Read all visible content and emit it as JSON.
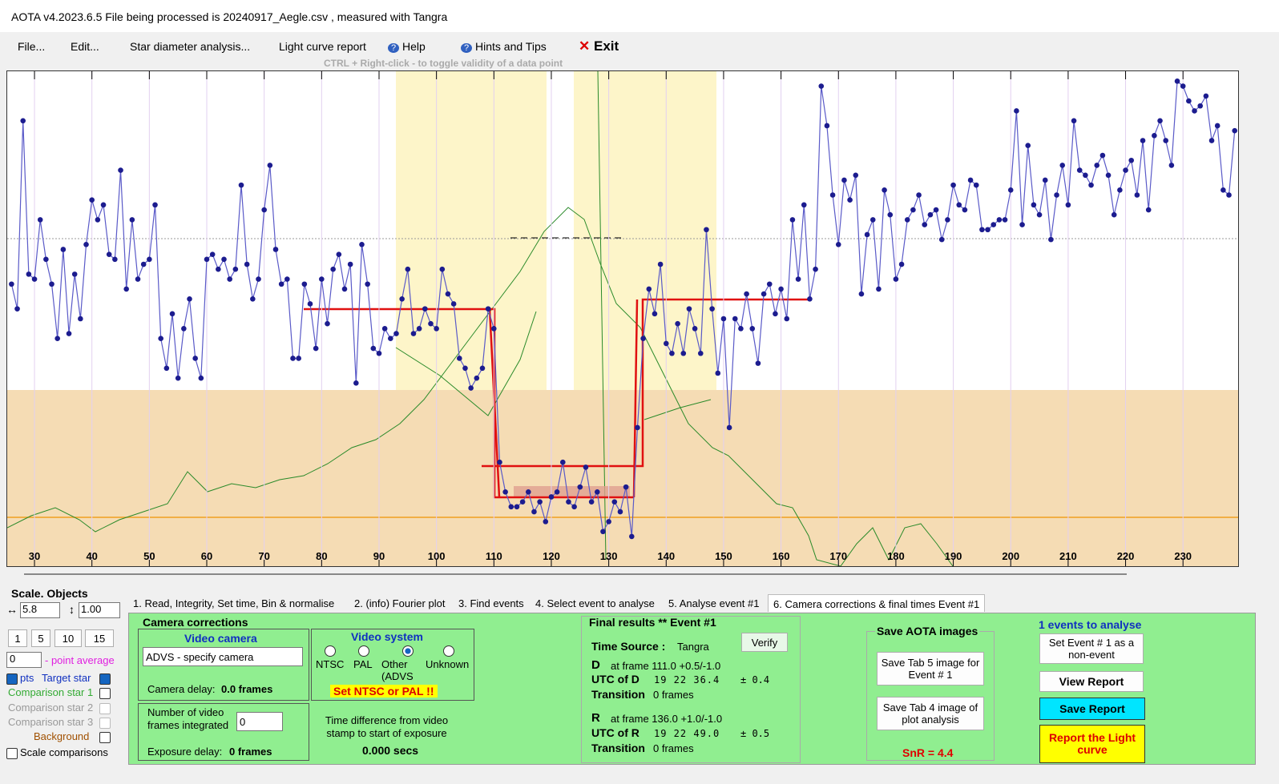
{
  "window": {
    "title": "AOTA v4.2023.6.5    File being processed is  20240917_Aegle.csv ,  measured with Tangra"
  },
  "menu": [
    "File...",
    "Edit...",
    "Star diameter analysis...",
    "Light curve report",
    "Help",
    "Hints and Tips",
    "Exit"
  ],
  "hint": "CTRL + Right-click   -   to toggle validity of a data point",
  "chart_data": {
    "type": "line",
    "x": [
      26,
      27,
      28,
      29,
      30,
      31,
      32,
      33,
      34,
      35,
      36,
      37,
      38,
      39,
      40,
      41,
      42,
      43,
      44,
      45,
      46,
      47,
      48,
      49,
      50,
      51,
      52,
      53,
      54,
      55,
      56,
      57,
      58,
      59,
      60,
      61,
      62,
      63,
      64,
      65,
      66,
      67,
      68,
      69,
      70,
      71,
      72,
      73,
      74,
      75,
      76,
      77,
      78,
      79,
      80,
      81,
      82,
      83,
      84,
      85,
      86,
      87,
      88,
      89,
      90,
      91,
      92,
      93,
      94,
      95,
      96,
      97,
      98,
      99,
      100,
      101,
      102,
      103,
      104,
      105,
      106,
      107,
      108,
      109,
      110,
      111,
      112,
      113,
      114,
      115,
      116,
      117,
      118,
      119,
      120,
      121,
      122,
      123,
      124,
      125,
      126,
      127,
      128,
      129,
      130,
      131,
      132,
      133,
      134,
      135,
      136,
      137,
      138,
      139,
      140,
      141,
      142,
      143,
      144,
      145,
      146,
      147,
      148,
      149,
      150,
      151,
      152,
      153,
      154,
      155,
      156,
      157,
      158,
      159,
      160,
      161,
      162,
      163,
      164,
      165,
      166,
      167,
      168,
      169,
      170,
      171,
      172,
      173,
      174,
      175,
      176,
      177,
      178,
      179,
      180,
      181,
      182,
      183,
      184,
      185,
      186,
      187,
      188,
      189,
      190,
      191,
      192,
      193,
      194,
      195,
      196,
      197,
      198,
      199,
      200,
      201,
      202,
      203,
      204,
      205,
      206,
      207,
      208,
      209,
      210,
      211,
      212,
      213,
      214,
      215,
      216,
      217,
      218,
      219,
      220,
      221,
      222,
      223,
      224,
      225,
      226,
      227,
      228,
      229,
      230,
      231,
      232,
      233,
      234,
      235,
      236,
      237,
      238,
      239
    ],
    "series": [
      {
        "name": "Target star",
        "color": "#1c1c8f",
        "values": [
          57,
          52,
          90,
          59,
          58,
          70,
          62,
          57,
          46,
          64,
          47,
          59,
          50,
          65,
          74,
          70,
          73,
          63,
          62,
          80,
          56,
          70,
          58,
          61,
          62,
          73,
          46,
          40,
          51,
          38,
          48,
          54,
          42,
          38,
          62,
          63,
          60,
          62,
          58,
          60,
          77,
          61,
          54,
          58,
          72,
          81,
          64,
          57,
          58,
          42,
          42,
          57,
          53,
          44,
          58,
          49,
          60,
          63,
          56,
          61,
          37,
          65,
          57,
          44,
          43,
          48,
          46,
          47,
          54,
          60,
          47,
          48,
          52,
          49,
          48,
          60,
          55,
          53,
          42,
          40,
          36,
          38,
          40,
          52,
          48,
          21,
          15,
          12,
          12,
          13,
          15,
          11,
          13,
          9,
          14,
          15,
          21,
          13,
          12,
          16,
          20,
          13,
          15,
          7,
          9,
          13,
          11,
          16,
          6,
          28,
          46,
          56,
          51,
          61,
          45,
          43,
          49,
          43,
          52,
          48,
          43,
          68,
          52,
          39,
          50,
          28,
          50,
          48,
          55,
          48,
          41,
          55,
          57,
          51,
          56,
          50,
          70,
          58,
          73,
          54,
          60,
          97,
          89,
          75,
          65,
          78,
          74,
          79,
          55,
          67,
          70,
          56,
          76,
          71,
          58,
          61,
          70,
          72,
          75,
          69,
          71,
          72,
          66,
          70,
          77,
          73,
          72,
          78,
          77,
          68,
          68,
          69,
          70,
          70,
          76,
          92,
          69,
          85,
          73,
          71,
          78,
          66,
          75,
          81,
          73,
          90,
          80,
          79,
          77,
          81,
          83,
          79,
          71,
          76,
          80,
          82,
          75,
          86,
          72,
          87,
          90,
          86,
          81,
          98,
          97,
          94,
          92,
          93,
          95,
          86,
          89,
          76,
          75,
          88
        ]
      }
    ],
    "xlim": [
      25.25,
      239.6
    ],
    "ylim": [
      0,
      100
    ],
    "xticks": [
      30,
      40,
      50,
      60,
      70,
      80,
      90,
      100,
      110,
      120,
      130,
      140,
      150,
      160,
      170,
      180,
      190,
      200,
      210,
      220,
      230
    ],
    "grid": true
  },
  "left_panel": {
    "title": "Scale.  Objects",
    "scale_x": "5.8",
    "scale_y": "1.00",
    "buttons": [
      "1",
      "5",
      "10",
      "15"
    ],
    "average": "0",
    "average_label": "- point average",
    "pts": "pts",
    "objects": [
      "Target star",
      "Comparison star 1",
      "Comparison star 2",
      "Comparison star 3",
      "Background"
    ],
    "scale_comparisons": "Scale comparisons"
  },
  "tabs": [
    "1.  Read, Integrity, Set time, Bin & normalise",
    "2. (info) Fourier plot",
    "3. Find events",
    "4. Select event to analyse",
    "5. Analyse event #1",
    "6. Camera corrections & final times Event #1"
  ],
  "camera": {
    "title": "Camera corrections",
    "video_camera": "Video camera",
    "camera_choice": "ADVS - specify camera",
    "camera_delay_label": "Camera delay:",
    "camera_delay": "0.0 frames",
    "video_system": "Video system",
    "systems": [
      "NTSC",
      "PAL",
      "Other (ADVS",
      "Unknown"
    ],
    "warning": "Set NTSC or PAL !!",
    "integrated_label": "Number of video frames integrated",
    "integrated": "0",
    "exposure_label": "Exposure delay:",
    "exposure": "0 frames",
    "time_diff_label": "Time difference from video stamp to start of exposure",
    "time_diff": "0.000 secs"
  },
  "results": {
    "title": "Final results  **  Event #1",
    "time_source_label": "Time Source :",
    "time_source": "Tangra",
    "verify": "Verify",
    "d": "D",
    "d_frame": "at frame 111.0 +0.5/-1.0",
    "utc_d_label": "UTC of D",
    "utc_d": "19 22 36.4",
    "utc_d_err": "± 0.4",
    "transition_label": "Transition",
    "d_transition": "0 frames",
    "r": "R",
    "r_frame": "at frame 136.0 +1.0/-1.0",
    "utc_r_label": "UTC of R",
    "utc_r": "19 22 49.0",
    "utc_r_err": "± 0.5",
    "r_transition": "0 frames"
  },
  "save": {
    "title": "Save AOTA images",
    "tab5": "Save Tab 5 image for Event # 1",
    "tab4": "Save Tab 4 image of plot analysis",
    "snr": "SnR = 4.4"
  },
  "events": {
    "title": "1 events to analyse",
    "non_event": "Set Event # 1 as a non-event",
    "view": "View Report",
    "save": "Save Report",
    "report": "Report the Light curve"
  }
}
